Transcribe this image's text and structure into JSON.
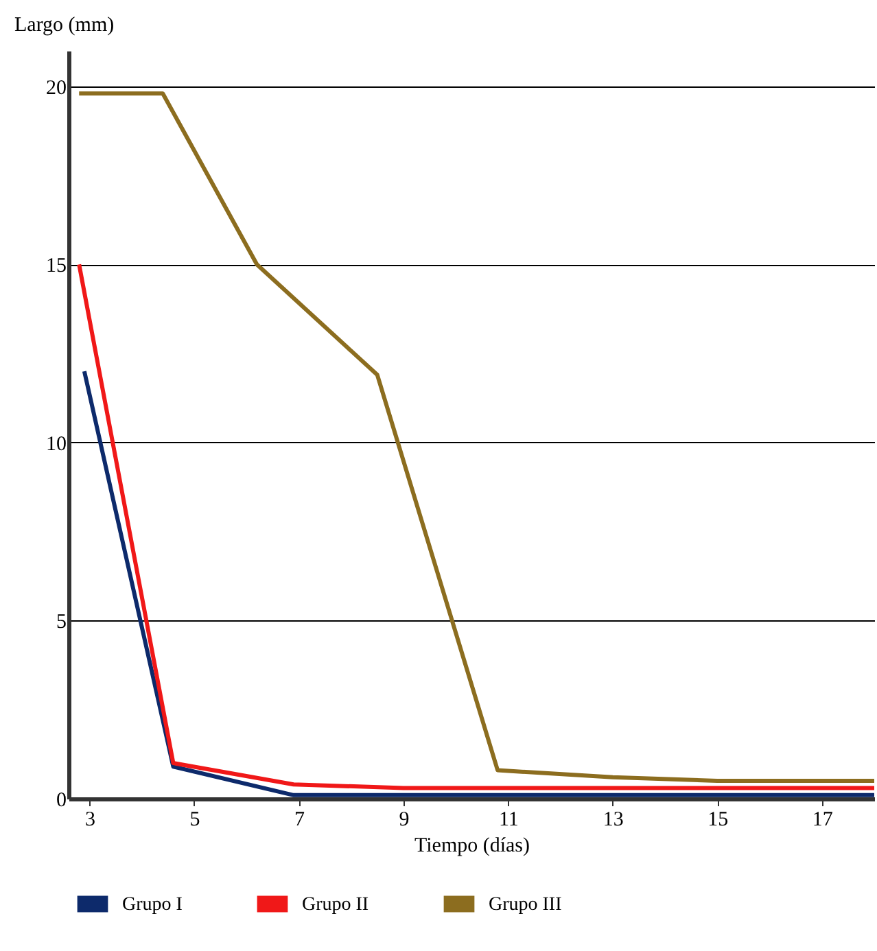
{
  "chart_data": {
    "type": "line",
    "xlabel": "Tiempo (días)",
    "ylabel": "Largo (mm)",
    "xlim": [
      2.6,
      18
    ],
    "xticks": [
      3,
      5,
      7,
      9,
      11,
      13,
      15,
      17
    ],
    "ylim": [
      0,
      21
    ],
    "yticks": [
      0,
      5,
      10,
      15,
      20
    ],
    "grid": "y",
    "legend": "bottom",
    "line_style": "solid",
    "marker": "none",
    "series": [
      {
        "name": "Grupo I",
        "color": "#0d2a6b",
        "x": [
          2.9,
          4.6,
          6.9,
          9,
          11,
          13,
          15,
          18
        ],
        "values": [
          12,
          0.9,
          0.1,
          0.1,
          0.1,
          0.1,
          0.1,
          0.1
        ]
      },
      {
        "name": "Grupo II",
        "color": "#f01818",
        "x": [
          2.8,
          4.6,
          6.9,
          9,
          11,
          13,
          15,
          18
        ],
        "values": [
          15,
          1,
          0.4,
          0.3,
          0.3,
          0.3,
          0.3,
          0.3
        ]
      },
      {
        "name": "Grupo III",
        "color": "#8c6d1f",
        "x": [
          2.8,
          4.4,
          6.2,
          8.5,
          10.8,
          13,
          15,
          18
        ],
        "values": [
          19.8,
          19.8,
          15,
          11.9,
          0.8,
          0.6,
          0.5,
          0.5
        ]
      }
    ]
  }
}
